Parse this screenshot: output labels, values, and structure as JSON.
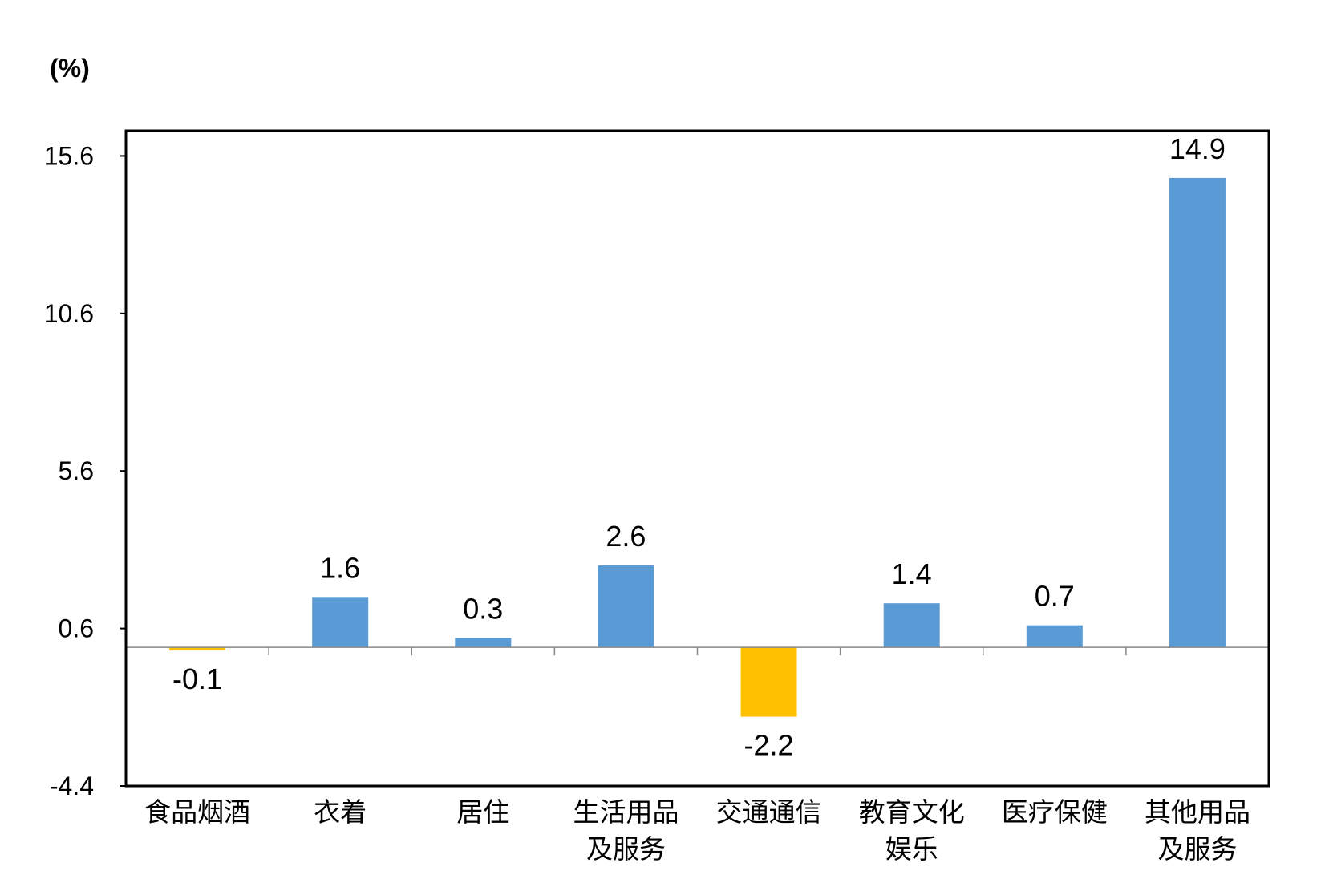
{
  "chart_data": {
    "type": "bar",
    "unit_label": "(%)",
    "categories": [
      [
        "食品烟酒"
      ],
      [
        "衣着"
      ],
      [
        "居住"
      ],
      [
        "生活用品",
        "及服务"
      ],
      [
        "交通通信"
      ],
      [
        "教育文化",
        "娱乐"
      ],
      [
        "医疗保健"
      ],
      [
        "其他用品",
        "及服务"
      ]
    ],
    "values": [
      -0.1,
      1.6,
      0.3,
      2.6,
      -2.2,
      1.4,
      0.7,
      14.9
    ],
    "data_labels": [
      "-0.1",
      "1.6",
      "0.3",
      "2.6",
      "-2.2",
      "1.4",
      "0.7",
      "14.9"
    ],
    "y_ticks": [
      -4.4,
      0.6,
      5.6,
      10.6,
      15.6
    ],
    "y_tick_labels": [
      "-4.4",
      "0.6",
      "5.6",
      "10.6",
      "15.6"
    ],
    "ylim": [
      -4.4,
      16.4
    ],
    "grid": false,
    "legend": "none",
    "colors": {
      "positive": "#5B9BD5",
      "negative": "#FFC000",
      "axis": "#000000",
      "zero_line": "#888888"
    }
  }
}
